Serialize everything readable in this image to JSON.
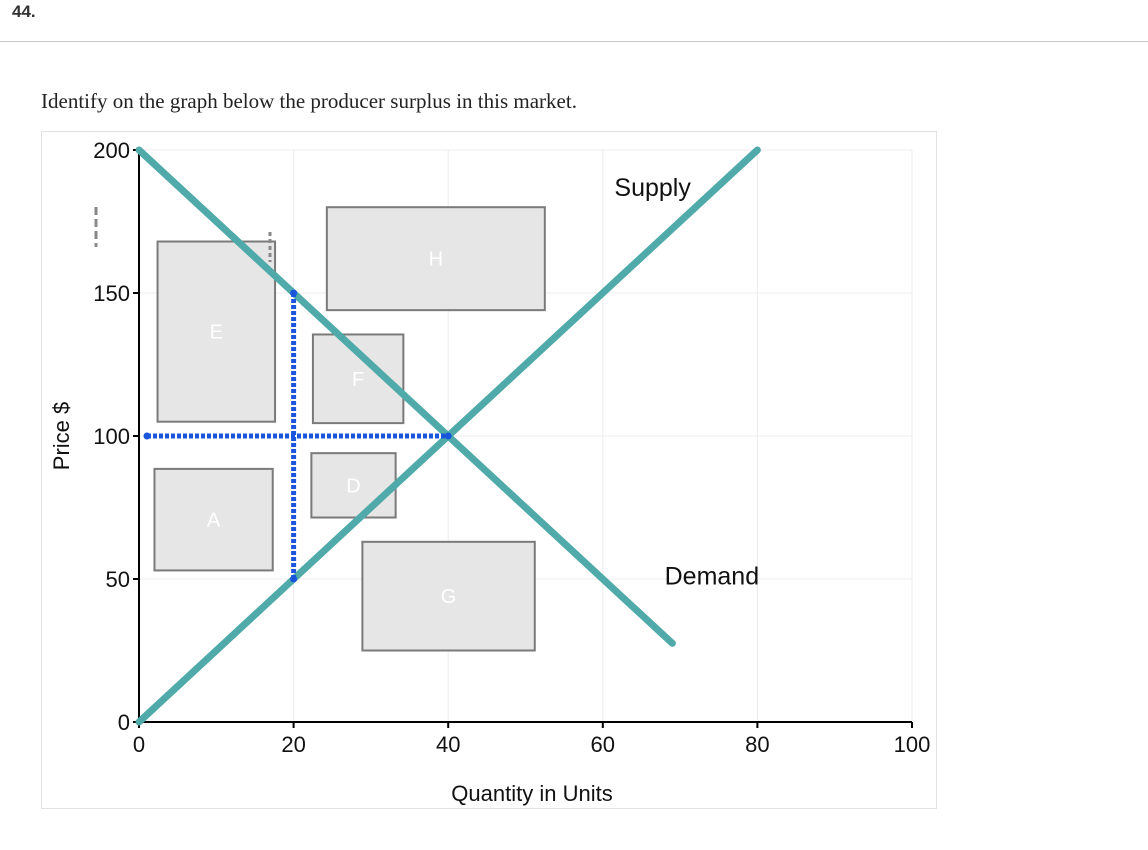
{
  "question": {
    "number": "44.",
    "prompt": "Identify on the graph below the producer surplus in this market."
  },
  "colors": {
    "curve": "#4faaa9",
    "guide": "#1a56db",
    "box_fill": "#e6e6e6",
    "box_stroke": "#7a7a7a",
    "grid": "#ececec"
  },
  "chart_data": {
    "type": "line",
    "title": "",
    "xlabel": "Quantity in Units",
    "ylabel": "Price $",
    "xlim": [
      0,
      100
    ],
    "ylim": [
      0,
      200
    ],
    "x_ticks": [
      0,
      20,
      40,
      60,
      80,
      100
    ],
    "y_ticks": [
      0,
      50,
      100,
      150,
      200
    ],
    "grid": true,
    "series": [
      {
        "name": "Supply",
        "x": [
          0,
          80
        ],
        "y": [
          0,
          200
        ]
      },
      {
        "name": "Demand",
        "x": [
          0,
          69
        ],
        "y": [
          200,
          27.5
        ]
      }
    ],
    "equilibrium": {
      "x": 40,
      "y": 100
    },
    "guide_lines": [
      {
        "from": [
          0,
          100
        ],
        "to": [
          40,
          100
        ]
      },
      {
        "from": [
          20,
          50
        ],
        "to": [
          20,
          150
        ]
      }
    ],
    "regions": [
      {
        "label": "A",
        "x0": 2,
        "x1": 17.3,
        "y0": 53,
        "y1": 88.5
      },
      {
        "label": "E",
        "x0": 2.4,
        "x1": 17.6,
        "y0": 105,
        "y1": 168
      },
      {
        "label": "F",
        "x0": 22.5,
        "x1": 34.2,
        "y0": 104.5,
        "y1": 135.5
      },
      {
        "label": "D",
        "x0": 22.3,
        "x1": 33.2,
        "y0": 71.5,
        "y1": 94
      },
      {
        "label": "G",
        "x0": 28.9,
        "x1": 51.2,
        "y0": 25,
        "y1": 63
      },
      {
        "label": "H",
        "x0": 24.3,
        "x1": 52.5,
        "y0": 144,
        "y1": 180
      }
    ]
  }
}
